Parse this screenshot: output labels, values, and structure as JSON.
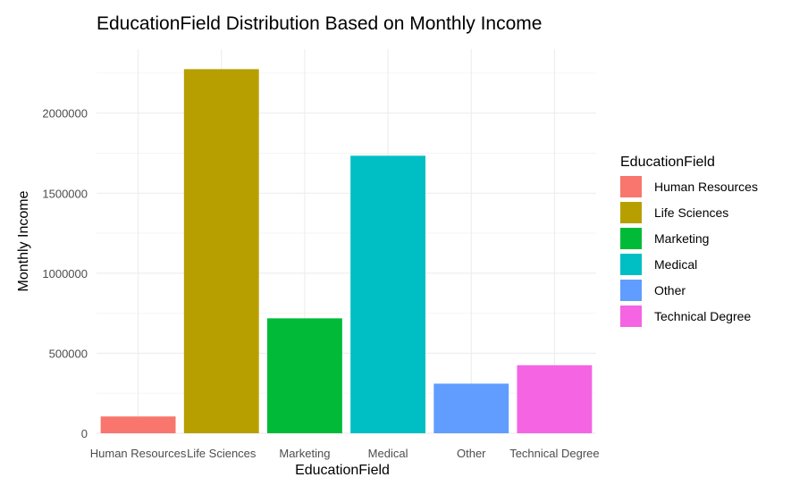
{
  "chart_data": {
    "type": "bar",
    "title": "EducationField Distribution Based on Monthly Income",
    "xlabel": "EducationField",
    "ylabel": "Monthly Income",
    "categories": [
      "Human Resources",
      "Life Sciences",
      "Marketing",
      "Medical",
      "Other",
      "Technical Degree"
    ],
    "values": [
      105000,
      2275000,
      718000,
      1734000,
      310000,
      425000
    ],
    "colors": [
      "#F8766D",
      "#B79F00",
      "#00BA38",
      "#00BFC4",
      "#619CFF",
      "#F564E3"
    ],
    "ylim": [
      0,
      2400000
    ],
    "yticks": [
      0,
      500000,
      1000000,
      1500000,
      2000000
    ],
    "ytick_labels": [
      "0",
      "500000",
      "1000000",
      "1500000",
      "2000000"
    ],
    "grid": true,
    "legend": {
      "title": "EducationField",
      "position": "right",
      "entries": [
        "Human Resources",
        "Life Sciences",
        "Marketing",
        "Medical",
        "Other",
        "Technical Degree"
      ]
    }
  }
}
